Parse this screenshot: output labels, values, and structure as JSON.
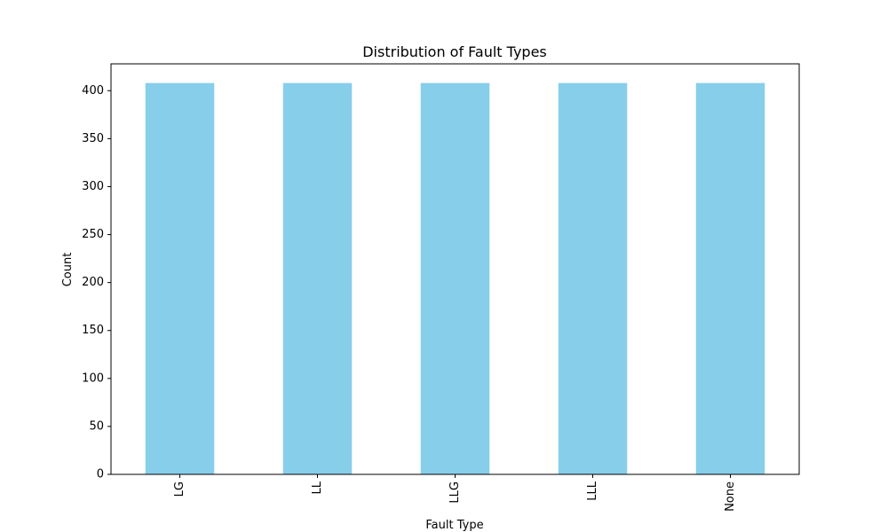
{
  "chart_data": {
    "type": "bar",
    "title": "Distribution of Fault Types",
    "xlabel": "Fault Type",
    "ylabel": "Count",
    "categories": [
      "LG",
      "LL",
      "LLG",
      "LLL",
      "None"
    ],
    "values": [
      408,
      408,
      408,
      408,
      408
    ],
    "ylim": [
      0,
      428
    ],
    "yticks": [
      0,
      50,
      100,
      150,
      200,
      250,
      300,
      350,
      400
    ],
    "grid": false,
    "legend": "none",
    "bar_color": "#87CEEB",
    "xtick_rotation": "vertical"
  }
}
